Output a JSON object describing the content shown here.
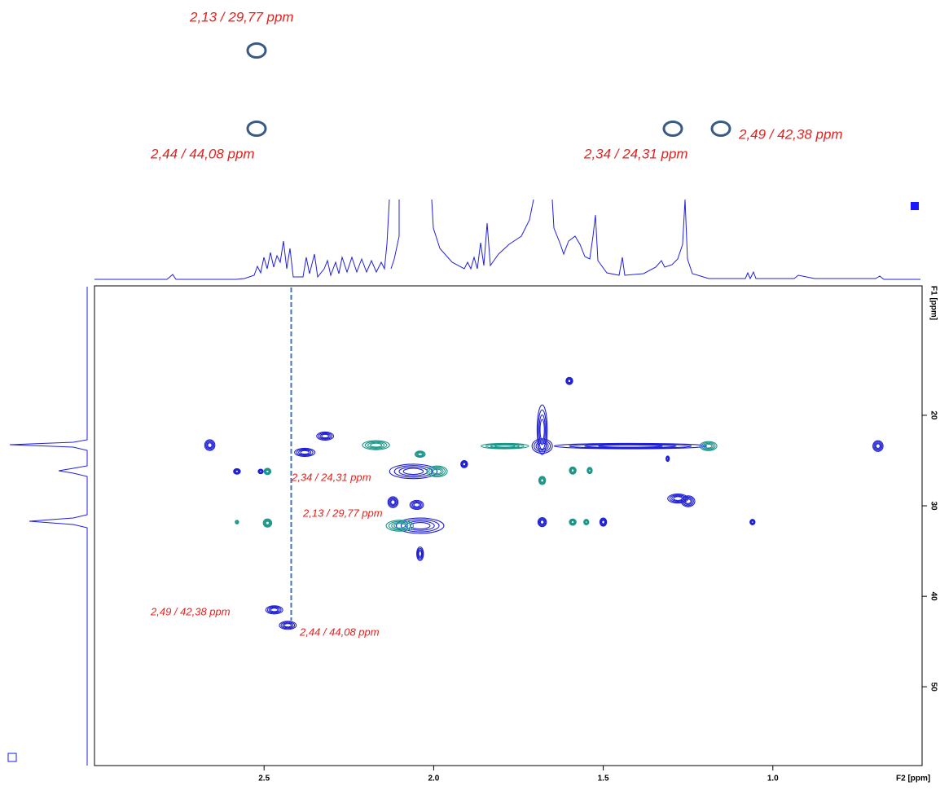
{
  "top_labels": [
    "2,13 / 29,77 ppm",
    "2,44 / 44,08 ppm",
    "2,34 / 24,31 ppm",
    "2,49 / 42,38 ppm"
  ],
  "chart_data": {
    "type": "contour",
    "x_label": "F2 [ppm]",
    "y_label": "F1 [ppm]",
    "xlim": [
      3.0,
      0.56
    ],
    "ylim": [
      5.7,
      58.7
    ],
    "xticks": [
      2.5,
      {
        "value": 2,
        "label": "2.0"
      },
      1.5,
      {
        "value": 1,
        "label": "1.0"
      }
    ],
    "yticks": [
      20,
      30,
      40,
      50
    ],
    "cursor_x": 2.42,
    "annotations": [
      "2,34 / 24,31 ppm",
      "2,13 / 29,77 ppm",
      "2,49 / 42,38 ppm",
      "2,44 / 44,08 ppm"
    ],
    "series": [
      {
        "color": "#1f1fd6",
        "x": [
          2.66,
          2.58,
          2.51,
          2.38,
          2.32,
          2.06,
          2.12,
          2.05,
          2.04,
          2.04,
          1.91,
          1.68,
          1.42,
          1.68,
          1.6,
          1.68,
          1.5,
          1.28,
          1.25,
          1.31,
          1.06,
          0.69,
          2.47,
          2.43
        ],
        "values": [
          23.3,
          26.2,
          26.2,
          24.1,
          22.3,
          26.2,
          29.6,
          29.9,
          32.2,
          35.3,
          25.4,
          23.4,
          23.4,
          21.6,
          16.2,
          31.8,
          31.8,
          29.2,
          29.5,
          24.8,
          31.8,
          23.4,
          41.5,
          43.2
        ],
        "x_widths": [
          0.03,
          0.02,
          0.015,
          0.06,
          0.05,
          0.14,
          0.03,
          0.04,
          0.14,
          0.02,
          0.02,
          0.06,
          0.45,
          0.03,
          0.02,
          0.025,
          0.02,
          0.06,
          0.04,
          0.01,
          0.015,
          0.03,
          0.05,
          0.05
        ],
        "y_widths": [
          1.2,
          0.6,
          0.5,
          0.9,
          0.9,
          1.6,
          1.2,
          1.0,
          1.7,
          1.5,
          0.8,
          1.6,
          0.6,
          5.5,
          0.8,
          1.0,
          0.9,
          1.0,
          1.2,
          0.6,
          0.6,
          1.2,
          0.9,
          0.9
        ]
      },
      {
        "color": "#1a9688",
        "x": [
          2.49,
          2.49,
          2.58,
          2.17,
          1.99,
          2.1,
          2.04,
          1.79,
          1.19,
          1.68,
          1.59,
          1.54,
          1.59,
          1.55
        ],
        "values": [
          26.2,
          31.9,
          31.8,
          23.3,
          26.2,
          32.2,
          24.3,
          23.4,
          23.4,
          27.2,
          26.1,
          26.1,
          31.8,
          31.8
        ],
        "x_widths": [
          0.02,
          0.025,
          0.01,
          0.08,
          0.06,
          0.08,
          0.03,
          0.14,
          0.05,
          0.02,
          0.02,
          0.015,
          0.02,
          0.015
        ],
        "y_widths": [
          0.7,
          0.9,
          0.4,
          1.0,
          1.2,
          1.2,
          0.7,
          0.6,
          1.0,
          0.9,
          0.8,
          0.7,
          0.7,
          0.6
        ]
      }
    ]
  }
}
